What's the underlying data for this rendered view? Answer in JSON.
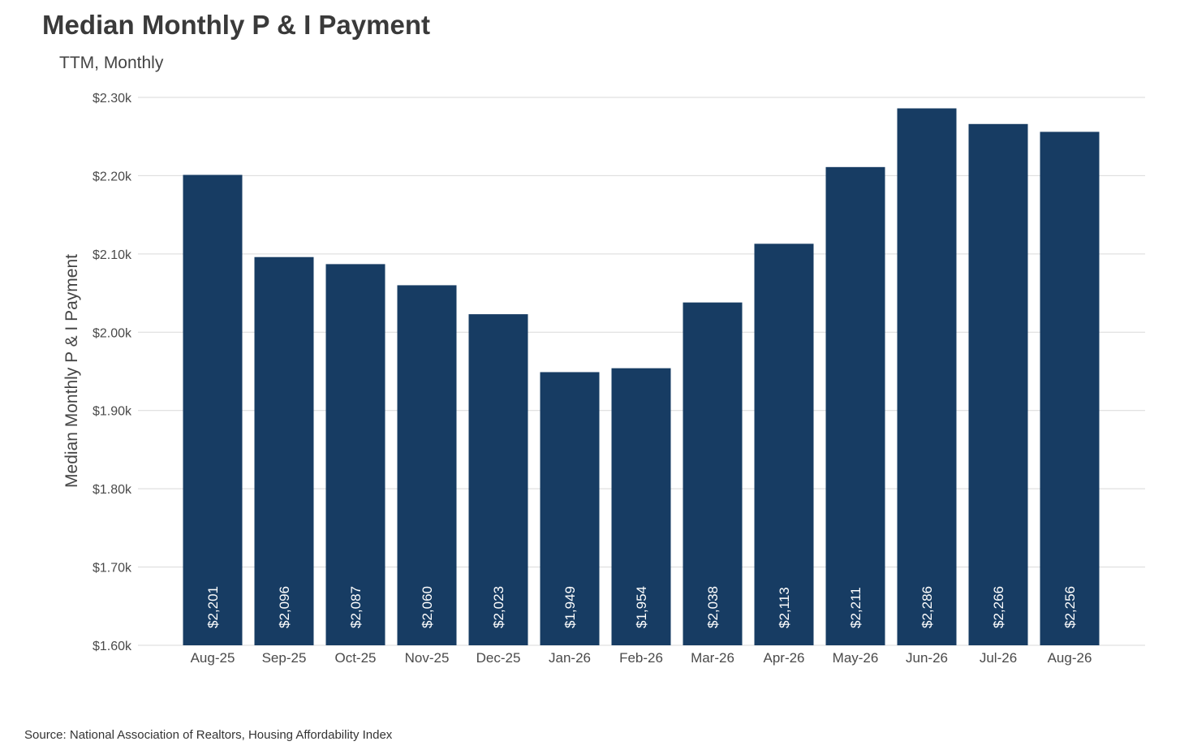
{
  "chart_data": {
    "type": "bar",
    "title": "Median Monthly P & I Payment",
    "subtitle": "TTM, Monthly",
    "xlabel": "",
    "ylabel": "Median Monthly P & I Payment",
    "categories": [
      "Aug-25",
      "Sep-25",
      "Oct-25",
      "Nov-25",
      "Dec-25",
      "Jan-26",
      "Feb-26",
      "Mar-26",
      "Apr-26",
      "May-26",
      "Jun-26",
      "Jul-26",
      "Aug-26"
    ],
    "values": [
      2201,
      2096,
      2087,
      2060,
      2023,
      1949,
      1954,
      2038,
      2113,
      2211,
      2286,
      2266,
      2256
    ],
    "data_labels": [
      "$2,201",
      "$2,096",
      "$2,087",
      "$2,060",
      "$2,023",
      "$1,949",
      "$1,954",
      "$2,038",
      "$2,113",
      "$2,211",
      "$2,286",
      "$2,266",
      "$2,256"
    ],
    "ylim": [
      1600,
      2300
    ],
    "yticks": [
      1600,
      1700,
      1800,
      1900,
      2000,
      2100,
      2200,
      2300
    ],
    "ytick_labels": [
      "$1.60k",
      "$1.70k",
      "$1.80k",
      "$1.90k",
      "$2.00k",
      "$2.10k",
      "$2.20k",
      "$2.30k"
    ],
    "grid": true,
    "legend": "none",
    "bar_color": "#173c63",
    "grid_color": "#d9d9d9",
    "source": "Source: National Association of Realtors, Housing Affordability Index"
  }
}
